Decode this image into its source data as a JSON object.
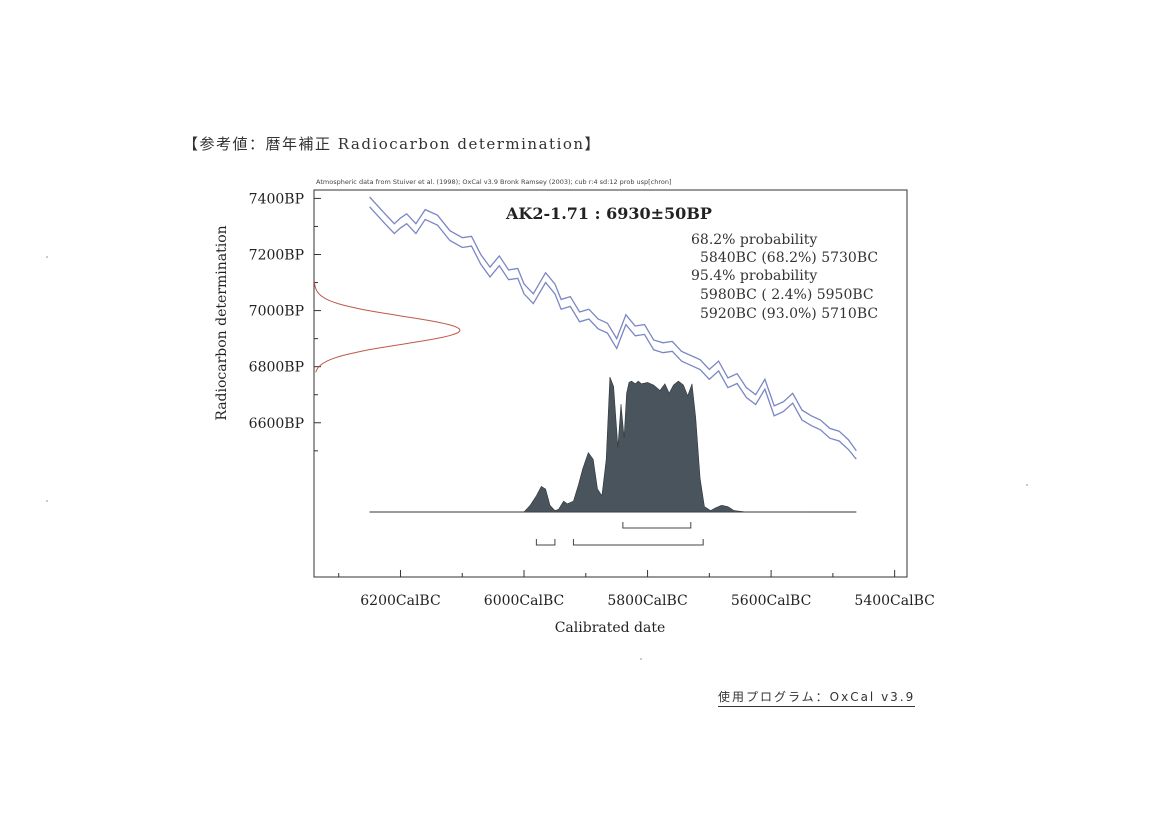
{
  "heading": "【参考値：暦年補正 Radiocarbon determination】",
  "footer": "使用プログラム：OxCal v3.9",
  "chart_data": {
    "type": "line",
    "header_note": "Atmospheric data from Stuiver et al. (1998); OxCal v3.9 Bronk Ramsey (2003); cub r:4 sd:12 prob usp[chron]",
    "title": "AK2-1.71 : 6930±50BP",
    "xlabel": "Calibrated date",
    "ylabel": "Radiocarbon determination",
    "x_ticks": [
      "6200CalBC",
      "6000CalBC",
      "5800CalBC",
      "5600CalBC",
      "5400CalBC"
    ],
    "y_ticks": [
      "7400BP",
      "7200BP",
      "7000BP",
      "6800BP",
      "6600BP"
    ],
    "xlim": [
      6340,
      5380
    ],
    "ylim": [
      6050,
      7430
    ],
    "probability_text": [
      "68.2% probability",
      "5840BC (68.2%) 5730BC",
      "95.4% probability",
      "5980BC ( 2.4%) 5950BC",
      "5920BC (93.0%) 5710BC"
    ],
    "series": [
      {
        "name": "",
        "role": "calibration-upper",
        "color": "#7b86c4",
        "x": [
          6250,
          6225,
          6210,
          6200,
          6190,
          6175,
          6160,
          6140,
          6120,
          6100,
          6085,
          6070,
          6055,
          6040,
          6025,
          6010,
          6000,
          5985,
          5965,
          5950,
          5940,
          5925,
          5910,
          5895,
          5880,
          5865,
          5850,
          5835,
          5820,
          5805,
          5790,
          5775,
          5760,
          5745,
          5730,
          5715,
          5700,
          5685,
          5670,
          5655,
          5640,
          5625,
          5610,
          5595,
          5580,
          5565,
          5550,
          5535,
          5520,
          5505,
          5490,
          5475,
          5462
        ],
        "y": [
          7405,
          7345,
          7310,
          7330,
          7345,
          7310,
          7360,
          7340,
          7285,
          7260,
          7265,
          7200,
          7155,
          7195,
          7145,
          7150,
          7095,
          7060,
          7135,
          7095,
          7040,
          7050,
          6995,
          7005,
          6970,
          6955,
          6900,
          6985,
          6945,
          6950,
          6895,
          6885,
          6890,
          6855,
          6840,
          6825,
          6790,
          6820,
          6760,
          6775,
          6725,
          6700,
          6755,
          6660,
          6675,
          6705,
          6645,
          6625,
          6610,
          6580,
          6570,
          6540,
          6500
        ]
      },
      {
        "name": "",
        "role": "calibration-lower",
        "color": "#7b86c4",
        "x": [
          6250,
          6225,
          6210,
          6200,
          6190,
          6175,
          6160,
          6140,
          6120,
          6100,
          6085,
          6070,
          6055,
          6040,
          6025,
          6010,
          6000,
          5985,
          5965,
          5950,
          5940,
          5925,
          5910,
          5895,
          5880,
          5865,
          5850,
          5835,
          5820,
          5805,
          5790,
          5775,
          5760,
          5745,
          5730,
          5715,
          5700,
          5685,
          5670,
          5655,
          5640,
          5625,
          5610,
          5595,
          5580,
          5565,
          5550,
          5535,
          5520,
          5505,
          5490,
          5475,
          5462
        ],
        "y": [
          7370,
          7310,
          7275,
          7295,
          7310,
          7275,
          7325,
          7305,
          7250,
          7225,
          7230,
          7165,
          7120,
          7160,
          7110,
          7115,
          7060,
          7025,
          7100,
          7060,
          7005,
          7015,
          6960,
          6970,
          6935,
          6920,
          6865,
          6950,
          6910,
          6915,
          6860,
          6850,
          6855,
          6820,
          6805,
          6790,
          6755,
          6785,
          6725,
          6740,
          6690,
          6665,
          6720,
          6625,
          6640,
          6670,
          6610,
          6590,
          6575,
          6545,
          6535,
          6505,
          6470
        ]
      },
      {
        "name": "",
        "role": "radiocarbon-measurement",
        "color": "#c0584a",
        "mean": 6930,
        "sd": 50
      },
      {
        "name": "",
        "role": "calibrated-distribution",
        "color": "#4a545c",
        "x": [
          6250,
          6000,
          5990,
          5980,
          5972,
          5965,
          5958,
          5950,
          5944,
          5936,
          5930,
          5920,
          5912,
          5905,
          5896,
          5888,
          5881,
          5874,
          5867,
          5861,
          5855,
          5848,
          5843,
          5838,
          5834,
          5830,
          5826,
          5820,
          5815,
          5810,
          5800,
          5790,
          5780,
          5772,
          5765,
          5758,
          5750,
          5742,
          5735,
          5728,
          5722,
          5715,
          5708,
          5698,
          5690,
          5680,
          5670,
          5660,
          5640,
          5540
        ],
        "y": [
          0,
          0,
          0.05,
          0.12,
          0.19,
          0.17,
          0.05,
          0.01,
          0.02,
          0.08,
          0.06,
          0.08,
          0.2,
          0.32,
          0.44,
          0.39,
          0.17,
          0.12,
          0.39,
          1.0,
          0.93,
          0.48,
          0.8,
          0.55,
          0.88,
          0.96,
          0.97,
          0.95,
          0.97,
          0.95,
          0.96,
          0.94,
          0.9,
          0.95,
          0.88,
          0.94,
          0.97,
          0.94,
          0.86,
          0.95,
          0.7,
          0.25,
          0.04,
          0.01,
          0.03,
          0.05,
          0.04,
          0.01,
          0.0,
          0
        ]
      }
    ],
    "ranges": [
      {
        "level": "68.2%",
        "from": 5840,
        "to": 5730
      },
      {
        "level": "95.4%",
        "from": 5980,
        "to": 5950
      },
      {
        "level": "95.4%",
        "from": 5920,
        "to": 5710
      }
    ],
    "colors": {
      "frame": "#333333",
      "calibration": "#7b86c4",
      "measurement": "#c0584a",
      "distribution": "#4a545c"
    }
  }
}
